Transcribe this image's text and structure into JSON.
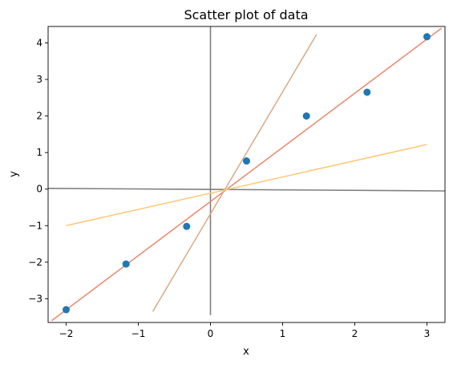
{
  "chart_data": {
    "type": "scatter",
    "title": "Scatter plot of data",
    "xlabel": "x",
    "ylabel": "y",
    "xlim": [
      -2.25,
      3.25
    ],
    "ylim": [
      -3.65,
      4.45
    ],
    "x_ticks": [
      -2,
      -1,
      0,
      1,
      2,
      3
    ],
    "y_ticks": [
      -3,
      -2,
      -1,
      0,
      1,
      2,
      3,
      4
    ],
    "x_tick_labels": [
      "−2",
      "−1",
      "0",
      "1",
      "2",
      "3"
    ],
    "y_tick_labels": [
      "−3",
      "−2",
      "−1",
      "0",
      "1",
      "2",
      "3",
      "4"
    ],
    "grid": false,
    "points": {
      "color": "#1f77b4",
      "x": [
        -2.0,
        -1.17,
        -0.33,
        0.5,
        1.33,
        2.17,
        3.0
      ],
      "y": [
        -3.3,
        -2.05,
        -1.02,
        0.77,
        2.0,
        2.65,
        4.17
      ]
    },
    "lines": [
      {
        "color": "#7f7f7f",
        "x": [
          -2.25,
          3.25
        ],
        "y": [
          0.02,
          -0.05
        ]
      },
      {
        "color": "#7f7f7f",
        "x": [
          0.0,
          0.0
        ],
        "y": [
          4.45,
          -3.45
        ]
      },
      {
        "color": "#e9866e",
        "x": [
          -2.2,
          3.2
        ],
        "y": [
          -3.6,
          4.4
        ]
      },
      {
        "color": "#d8aa84",
        "x": [
          -0.8,
          1.47
        ],
        "y": [
          -3.35,
          4.23
        ]
      },
      {
        "color": "#ffc875",
        "x": [
          -2.0,
          3.0
        ],
        "y": [
          -1.0,
          1.22
        ]
      }
    ]
  }
}
